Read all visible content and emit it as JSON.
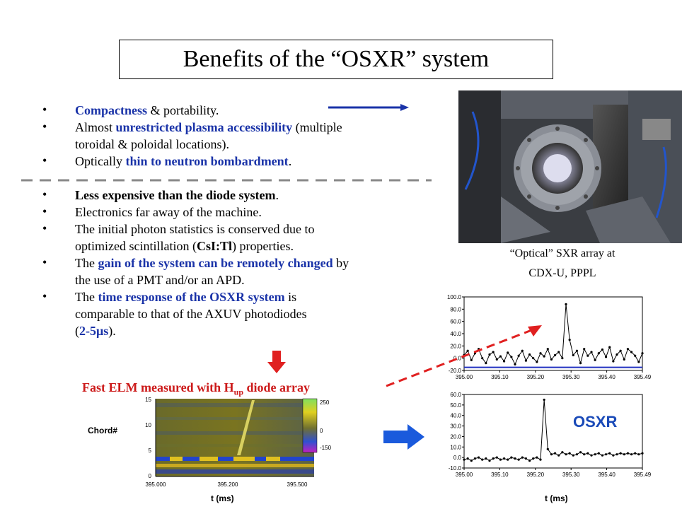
{
  "title": "Benefits of the “OSXR” system",
  "bullets_top": [
    {
      "parts": [
        {
          "t": "Compactness",
          "c": "blue"
        },
        {
          "t": "  & portability.",
          "c": ""
        }
      ]
    },
    {
      "parts": [
        {
          "t": "Almost ",
          "c": ""
        },
        {
          "t": "unrestricted plasma accessibility",
          "c": "blue"
        },
        {
          "t": " (multiple",
          "c": ""
        }
      ]
    },
    {
      "parts": [
        {
          "t": "toroidal & poloidal locations).",
          "c": ""
        }
      ]
    },
    {
      "parts": [
        {
          "t": "Optically ",
          "c": ""
        },
        {
          "t": "thin to neutron bombardment",
          "c": "blue"
        },
        {
          "t": ".",
          "c": ""
        }
      ]
    }
  ],
  "bullets_bottom": [
    {
      "parts": [
        {
          "t": "Less expensive than the diode system",
          "c": "b"
        },
        {
          "t": ".",
          "c": ""
        }
      ]
    },
    {
      "parts": [
        {
          "t": "Electronics far away of the machine.",
          "c": ""
        }
      ]
    },
    {
      "parts": [
        {
          "t": "The initial photon statistics is conserved due to",
          "c": ""
        }
      ]
    },
    {
      "parts": [
        {
          "t": "optimized scintillation (",
          "c": ""
        },
        {
          "t": "CsI:Tl",
          "c": "b"
        },
        {
          "t": ") properties.",
          "c": ""
        }
      ]
    },
    {
      "parts": [
        {
          "t": "The ",
          "c": ""
        },
        {
          "t": "gain of the system can be remotely changed",
          "c": "blue"
        },
        {
          "t": " by",
          "c": ""
        }
      ]
    },
    {
      "parts": [
        {
          "t": "the use of a PMT and/or an APD.",
          "c": ""
        }
      ]
    },
    {
      "parts": [
        {
          "t": "The ",
          "c": ""
        },
        {
          "t": "time response of the OSXR system",
          "c": "blue"
        },
        {
          "t": " is",
          "c": ""
        }
      ]
    },
    {
      "parts": [
        {
          "t": "comparable to that of the AXUV photodiodes",
          "c": ""
        }
      ]
    },
    {
      "parts": [
        {
          "t": "(",
          "c": ""
        },
        {
          "t": "2-5μs",
          "c": "blue"
        },
        {
          "t": ").",
          "c": ""
        }
      ]
    }
  ],
  "photo_caption_line1": "“Optical” SXR array at",
  "photo_caption_line2": "CDX-U, PPPL",
  "elm_title": "Fast ELM measured with H",
  "elm_title_sub": "up",
  "elm_title_end": " diode array",
  "chord_label": "Chord#",
  "heatmap_yticks": [
    "15",
    "10",
    "5",
    "0"
  ],
  "heatmap_xticks": [
    "395.000",
    "395.200",
    "395.500"
  ],
  "colorbar_ticks": [
    "250",
    "0",
    "-150"
  ],
  "xlabel_left": "t (ms)",
  "xlabel_right": "t (ms)",
  "osxr_label": "OSXR",
  "chart_data": [
    {
      "type": "line",
      "title": "",
      "xlabel": "",
      "ylabel": "",
      "xlim": [
        395.0,
        395.49
      ],
      "ylim": [
        -20,
        100
      ],
      "yticks": [
        "100.0",
        "80.0",
        "60.0",
        "40.0",
        "20.0",
        "0.0",
        "-20.0"
      ],
      "xticks": [
        "395.00",
        "395.10",
        "395.20",
        "395.30",
        "395.40",
        "395.49"
      ],
      "series": [
        {
          "x": [
            395.0,
            395.01,
            395.02,
            395.03,
            395.04,
            395.05,
            395.06,
            395.07,
            395.08,
            395.09,
            395.1,
            395.11,
            395.12,
            395.13,
            395.14,
            395.15,
            395.16,
            395.17,
            395.18,
            395.19,
            395.2,
            395.21,
            395.22,
            395.23,
            395.24,
            395.25,
            395.26,
            395.27,
            395.28,
            395.29,
            395.3,
            395.31,
            395.32,
            395.33,
            395.34,
            395.35,
            395.36,
            395.37,
            395.38,
            395.39,
            395.4,
            395.41,
            395.42,
            395.43,
            395.44,
            395.45,
            395.46,
            395.47,
            395.48,
            395.49
          ],
          "values": [
            5,
            12,
            -3,
            8,
            15,
            0,
            -8,
            6,
            10,
            -2,
            3,
            -5,
            9,
            2,
            -10,
            4,
            12,
            -4,
            6,
            0,
            -6,
            8,
            3,
            15,
            -2,
            5,
            10,
            0,
            88,
            30,
            5,
            12,
            -8,
            15,
            4,
            10,
            -3,
            8,
            14,
            2,
            18,
            -5,
            6,
            12,
            -2,
            15,
            10,
            4,
            -6,
            8
          ]
        },
        {
          "x": [
            395.0,
            395.49
          ],
          "values": [
            -15,
            -15
          ]
        }
      ]
    },
    {
      "type": "line",
      "title": "",
      "xlabel": "",
      "ylabel": "",
      "xlim": [
        395.0,
        395.49
      ],
      "ylim": [
        -10,
        60
      ],
      "yticks": [
        "60.0",
        "50.0",
        "40.0",
        "30.0",
        "20.0",
        "10.0",
        "0.0",
        "-10.0"
      ],
      "xticks": [
        "395.00",
        "395.10",
        "395.20",
        "395.30",
        "395.40",
        "395.49"
      ],
      "series": [
        {
          "x": [
            395.0,
            395.01,
            395.02,
            395.03,
            395.04,
            395.05,
            395.06,
            395.07,
            395.08,
            395.09,
            395.1,
            395.11,
            395.12,
            395.13,
            395.14,
            395.15,
            395.16,
            395.17,
            395.18,
            395.19,
            395.2,
            395.21,
            395.22,
            395.23,
            395.24,
            395.25,
            395.26,
            395.27,
            395.28,
            395.29,
            395.3,
            395.31,
            395.32,
            395.33,
            395.34,
            395.35,
            395.36,
            395.37,
            395.38,
            395.39,
            395.4,
            395.41,
            395.42,
            395.43,
            395.44,
            395.45,
            395.46,
            395.47,
            395.48,
            395.49
          ],
          "values": [
            -2,
            -1,
            -3,
            -1,
            0,
            -2,
            -1,
            -3,
            -1,
            0,
            -2,
            -1,
            -2,
            0,
            -1,
            -2,
            0,
            -1,
            -3,
            -1,
            0,
            -2,
            55,
            8,
            3,
            4,
            2,
            5,
            3,
            4,
            2,
            3,
            5,
            3,
            4,
            2,
            3,
            4,
            2,
            3,
            4,
            2,
            3,
            4,
            3,
            4,
            3,
            4,
            3,
            4
          ]
        }
      ]
    }
  ]
}
